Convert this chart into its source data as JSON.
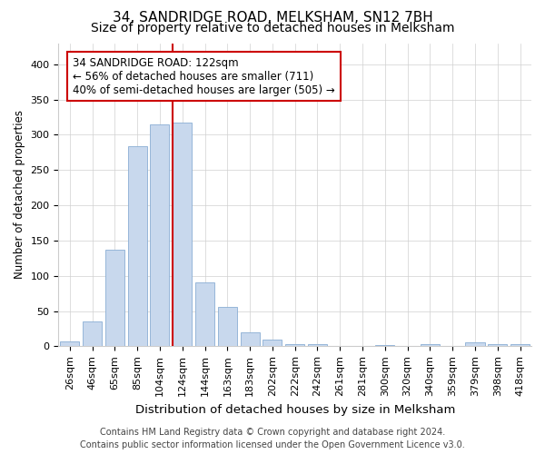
{
  "title": "34, SANDRIDGE ROAD, MELKSHAM, SN12 7BH",
  "subtitle": "Size of property relative to detached houses in Melksham",
  "xlabel": "Distribution of detached houses by size in Melksham",
  "ylabel": "Number of detached properties",
  "bar_labels": [
    "26sqm",
    "46sqm",
    "65sqm",
    "85sqm",
    "104sqm",
    "124sqm",
    "144sqm",
    "163sqm",
    "183sqm",
    "202sqm",
    "222sqm",
    "242sqm",
    "261sqm",
    "281sqm",
    "300sqm",
    "320sqm",
    "340sqm",
    "359sqm",
    "379sqm",
    "398sqm",
    "418sqm"
  ],
  "bar_values": [
    7,
    35,
    137,
    284,
    315,
    317,
    90,
    56,
    20,
    10,
    3,
    3,
    1,
    0,
    2,
    0,
    3,
    0,
    5,
    3,
    3
  ],
  "bar_color": "#c8d8ed",
  "bar_edge_color": "#8aaed4",
  "property_line_label": "34 SANDRIDGE ROAD: 122sqm",
  "annotation_line1": "← 56% of detached houses are smaller (711)",
  "annotation_line2": "40% of semi-detached houses are larger (505) →",
  "annotation_box_facecolor": "#ffffff",
  "annotation_box_edgecolor": "#cc0000",
  "red_line_color": "#cc0000",
  "ylim": [
    0,
    430
  ],
  "yticks": [
    0,
    50,
    100,
    150,
    200,
    250,
    300,
    350,
    400
  ],
  "footer_line1": "Contains HM Land Registry data © Crown copyright and database right 2024.",
  "footer_line2": "Contains public sector information licensed under the Open Government Licence v3.0.",
  "bg_color": "#ffffff",
  "grid_color": "#d0d0d0",
  "title_fontsize": 11,
  "subtitle_fontsize": 10,
  "xlabel_fontsize": 9.5,
  "ylabel_fontsize": 8.5,
  "tick_fontsize": 8,
  "footer_fontsize": 7,
  "annot_fontsize": 8.5
}
